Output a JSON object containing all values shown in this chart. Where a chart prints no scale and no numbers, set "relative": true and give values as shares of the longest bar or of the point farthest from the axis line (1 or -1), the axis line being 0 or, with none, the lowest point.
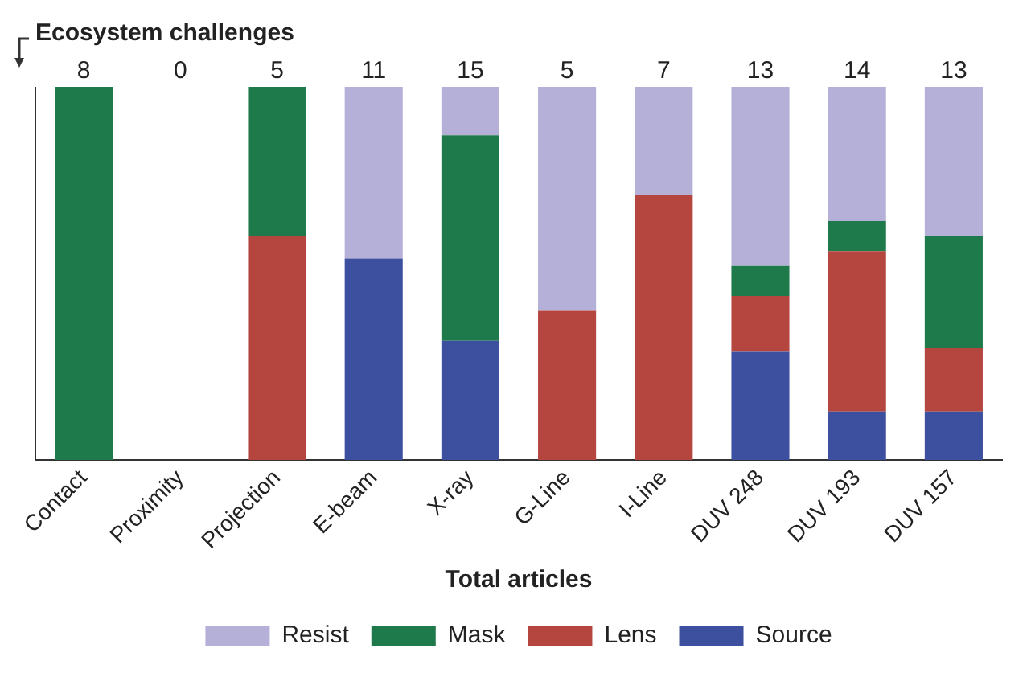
{
  "chart_data": {
    "type": "bar",
    "title": "Ecosystem challenges",
    "xlabel": "Total articles",
    "stacked": true,
    "relative": true,
    "legend": "bottom",
    "grid": false,
    "categories": [
      "Contact",
      "Proximity",
      "Projection",
      "E-beam",
      "X-ray",
      "G-Line",
      "I-Line",
      "DUV 248",
      "DUV 193",
      "DUV 157"
    ],
    "series": [
      {
        "name": "Source",
        "color": "#3d4f9f",
        "values": [
          0,
          0,
          0,
          0.54,
          0.32,
          0,
          0,
          0.29,
          0.13,
          0.13
        ]
      },
      {
        "name": "Lens",
        "color": "#b4463f",
        "values": [
          0,
          0,
          0.6,
          0,
          0,
          0.4,
          0.71,
          0.15,
          0.43,
          0.17
        ]
      },
      {
        "name": "Mask",
        "color": "#1f7a4b",
        "values": [
          1,
          0,
          0.4,
          0,
          0.55,
          0,
          0,
          0.08,
          0.08,
          0.3
        ]
      },
      {
        "name": "Resist",
        "color": "#b5b0d8",
        "values": [
          0,
          0,
          0,
          0.46,
          0.13,
          0.6,
          0.29,
          0.48,
          0.36,
          0.4
        ]
      }
    ],
    "annotations": [
      "8",
      "0",
      "5",
      "11",
      "15",
      "5",
      "7",
      "13",
      "14",
      "13"
    ]
  }
}
